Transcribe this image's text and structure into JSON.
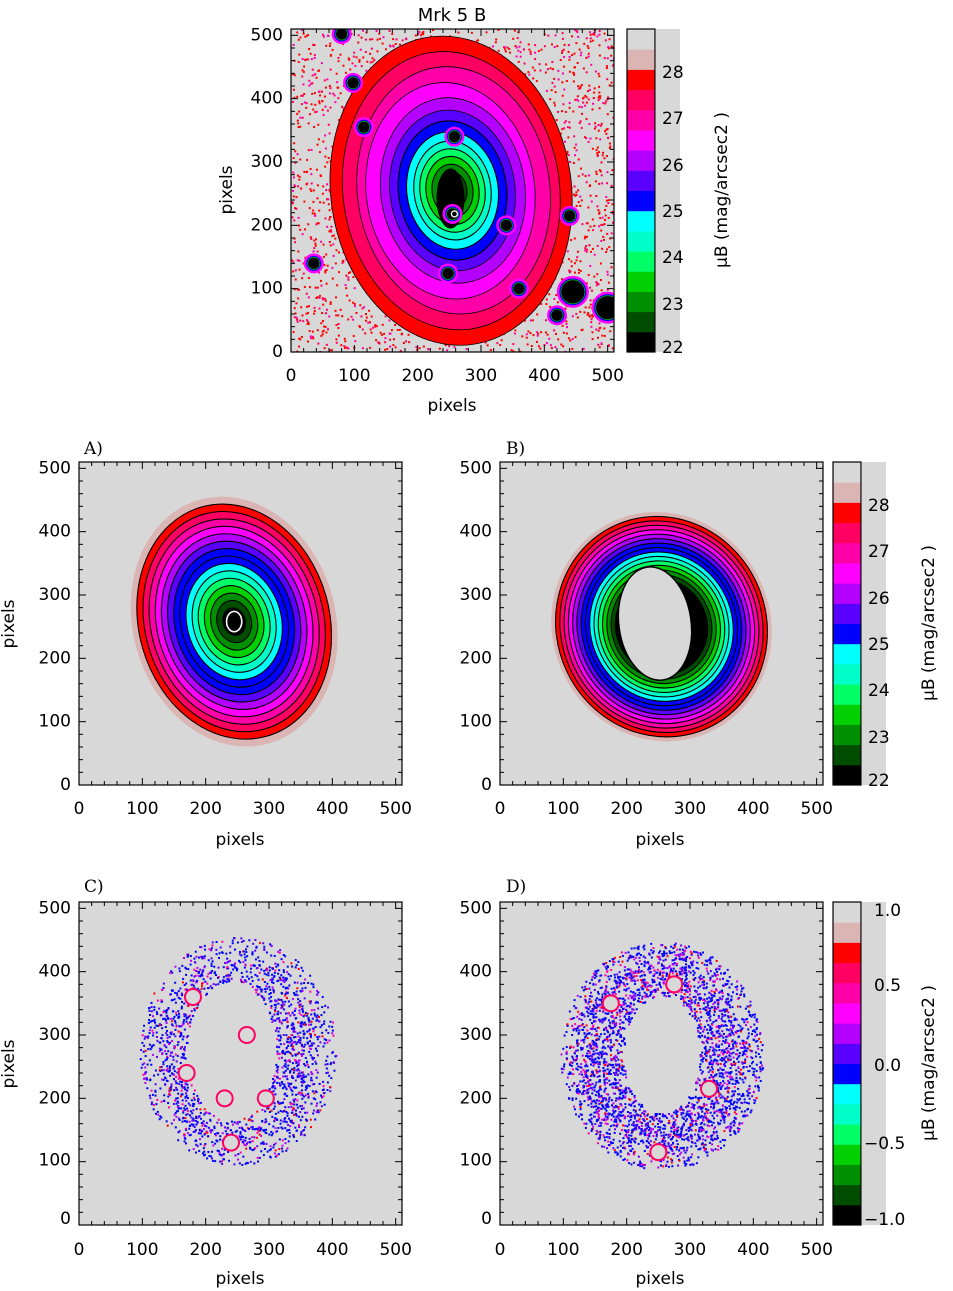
{
  "top_title": "Mrk 5  B",
  "axis_label": "pixels",
  "axis_ticks": [
    "0",
    "100",
    "200",
    "300",
    "400",
    "500"
  ],
  "colorbar_label": "μB (mag/arcsec2 )",
  "colorbar_main_ticks": [
    "22",
    "23",
    "24",
    "25",
    "26",
    "27",
    "28"
  ],
  "colorbar_resid_ticks": [
    "−1.0",
    "−0.5",
    "0.0",
    "0.5",
    "1.0"
  ],
  "colorbar_colors": [
    "#000000",
    "#004d00",
    "#008f00",
    "#00cf00",
    "#00ff66",
    "#00ffc8",
    "#00ffff",
    "#0000ff",
    "#5a00ff",
    "#b400ff",
    "#ff00ff",
    "#ff00a8",
    "#ff0062",
    "#ff0000",
    "#dbb4b4",
    "#d8d8d8"
  ],
  "background_color": "#d8d8d8",
  "chart_data": [
    {
      "id": "observed",
      "type": "heatmap",
      "title": "Mrk 5  B",
      "panel_letter": "",
      "xlabel": "pixels",
      "ylabel": "pixels",
      "xlim": [
        0,
        510
      ],
      "ylim": [
        0,
        510
      ],
      "xticks": [
        0,
        100,
        200,
        300,
        400,
        500
      ],
      "yticks": [
        0,
        100,
        200,
        300,
        400,
        500
      ],
      "colorbar": {
        "label": "μB (mag/arcsec2 )",
        "range": [
          22,
          29
        ],
        "ticks": [
          22,
          23,
          24,
          25,
          26,
          27,
          28
        ]
      },
      "galaxy": {
        "center": [
          255,
          255
        ],
        "outer_semi_axes": [
          190,
          245
        ],
        "pa_deg": -8,
        "core_semi_axes": [
          45,
          75
        ]
      },
      "point_sources": [
        [
          80,
          502
        ],
        [
          98,
          425
        ],
        [
          115,
          355
        ],
        [
          258,
          340
        ],
        [
          255,
          218
        ],
        [
          340,
          200
        ],
        [
          440,
          215
        ],
        [
          36,
          140
        ],
        [
          248,
          124
        ],
        [
          445,
          95
        ],
        [
          500,
          70
        ],
        [
          420,
          58
        ],
        [
          360,
          100
        ]
      ]
    },
    {
      "id": "A",
      "type": "heatmap",
      "title": "",
      "panel_letter": "A)",
      "xlabel": "pixels",
      "ylabel": "pixels",
      "xlim": [
        0,
        510
      ],
      "ylim": [
        0,
        510
      ],
      "xticks": [
        0,
        100,
        200,
        300,
        400,
        500
      ],
      "yticks": [
        0,
        100,
        200,
        300,
        400,
        500
      ],
      "galaxy": {
        "center": [
          245,
          258
        ],
        "outer_semi_axes": [
          160,
          200
        ],
        "pa_deg": -16,
        "core_semi_axes": [
          12,
          16
        ]
      },
      "contour_levels": [
        22.2,
        22.6,
        23.0,
        23.4,
        23.8,
        24.2,
        24.6,
        25.0,
        25.4,
        25.8,
        26.2,
        26.6,
        27.0,
        27.4,
        27.8,
        28.2
      ]
    },
    {
      "id": "B",
      "type": "heatmap",
      "title": "",
      "panel_letter": "B)",
      "xlabel": "pixels",
      "ylabel": "pixels",
      "xlim": [
        0,
        510
      ],
      "ylim": [
        0,
        510
      ],
      "xticks": [
        0,
        100,
        200,
        300,
        400,
        500
      ],
      "yticks": [
        0,
        100,
        200,
        300,
        400,
        500
      ],
      "colorbar": {
        "label": "μB (mag/arcsec2 )",
        "range": [
          22,
          29
        ],
        "ticks": [
          22,
          23,
          24,
          25,
          26,
          27,
          28
        ]
      },
      "galaxy": {
        "center": [
          255,
          250
        ],
        "outer_semi_axes": [
          172,
          183
        ],
        "pa_deg": -25,
        "inner_hole_semi_axes": [
          57,
          90
        ]
      },
      "contour_levels": [
        24.6,
        25.0,
        25.4,
        25.8,
        26.2,
        26.6,
        27.0,
        27.4,
        27.8,
        28.2
      ]
    },
    {
      "id": "C",
      "type": "heatmap",
      "title": "",
      "panel_letter": "C)",
      "xlabel": "pixels",
      "ylabel": "pixels",
      "xlim": [
        0,
        510
      ],
      "ylim": [
        0,
        510
      ],
      "xticks": [
        0,
        100,
        200,
        300,
        400,
        500
      ],
      "yticks": [
        0,
        100,
        200,
        300,
        400,
        500
      ],
      "residual_region": {
        "center": [
          250,
          275
        ],
        "outer_semi_axes": [
          155,
          180
        ],
        "hole_center": [
          240,
          275
        ],
        "hole_semi_axes": [
          70,
          110
        ]
      },
      "blobs": [
        [
          180,
          360
        ],
        [
          265,
          300
        ],
        [
          170,
          240
        ],
        [
          230,
          200
        ],
        [
          295,
          200
        ],
        [
          240,
          130
        ]
      ]
    },
    {
      "id": "D",
      "type": "heatmap",
      "title": "",
      "panel_letter": "D)",
      "xlabel": "pixels",
      "ylabel": "pixels",
      "xlim": [
        0,
        510
      ],
      "ylim": [
        0,
        510
      ],
      "xticks": [
        0,
        100,
        200,
        300,
        400,
        500
      ],
      "yticks": [
        0,
        100,
        200,
        300,
        400,
        500
      ],
      "colorbar": {
        "label": "μB (mag/arcsec2 )",
        "range": [
          -1,
          1
        ],
        "ticks": [
          -1.0,
          -0.5,
          0.0,
          0.5,
          1.0
        ]
      },
      "residual_region": {
        "center": [
          255,
          268
        ],
        "outer_semi_axes": [
          160,
          180
        ],
        "hole_center": [
          255,
          270
        ],
        "hole_semi_axes": [
          60,
          93
        ]
      },
      "blobs": [
        [
          175,
          350
        ],
        [
          330,
          215
        ],
        [
          250,
          115
        ],
        [
          275,
          380
        ]
      ]
    }
  ]
}
